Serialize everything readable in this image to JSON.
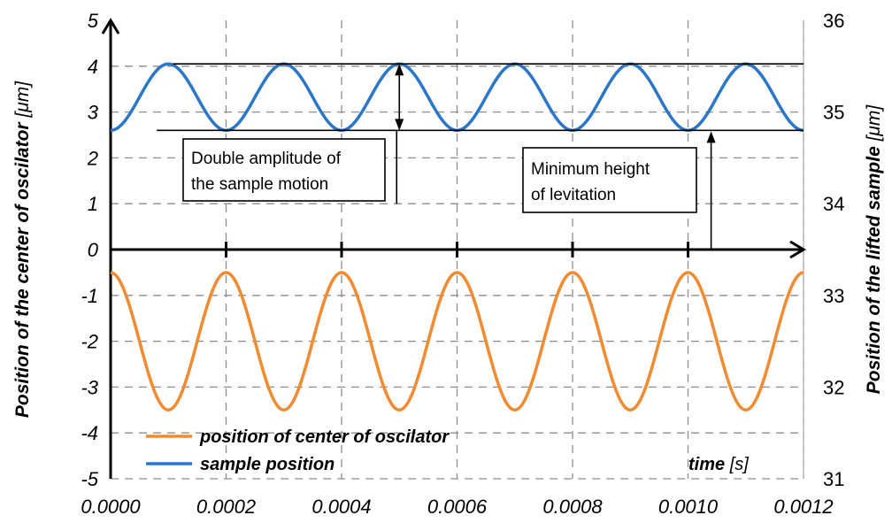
{
  "chart_data": {
    "type": "line",
    "x_ticks": [
      "0.0000",
      "0.0002",
      "0.0004",
      "0.0006",
      "0.0008",
      "0.0010",
      "0.0012"
    ],
    "xlim": [
      0,
      0.0012
    ],
    "left_axis": {
      "label_main": "Position of the center of oscilator ",
      "label_unit": "[μm]",
      "ylim": [
        -5,
        5
      ],
      "ticks": [
        "5",
        "4",
        "3",
        "2",
        "1",
        "0",
        "-1",
        "-2",
        "-3",
        "-4",
        "-5"
      ]
    },
    "right_axis": {
      "label_main": "Position of the lifted sample ",
      "label_unit": "[μm]",
      "ylim": [
        31,
        36
      ],
      "ticks": [
        "36",
        "35",
        "34",
        "33",
        "32",
        "31"
      ]
    },
    "x_label_main": "time ",
    "x_label_unit": "[s]",
    "grid": true,
    "legend_position": "bottom-left",
    "series": [
      {
        "name": "position of center of oscilator",
        "color": "#f28a30",
        "axis": "left",
        "x": [
          0,
          0.0001,
          0.0002,
          0.0003,
          0.0004,
          0.0005,
          0.0006,
          0.0007,
          0.0008,
          0.0009,
          0.001,
          0.0011,
          0.0012
        ],
        "y": [
          -0.5,
          -3.5,
          -0.5,
          -3.5,
          -0.5,
          -3.5,
          -0.5,
          -3.5,
          -0.5,
          -3.5,
          -0.5,
          -3.5,
          -0.5
        ]
      },
      {
        "name": "sample position",
        "color": "#2a76c9",
        "axis": "left",
        "x": [
          0,
          0.0001,
          0.0002,
          0.0003,
          0.0004,
          0.0005,
          0.0006,
          0.0007,
          0.0008,
          0.0009,
          0.001,
          0.0011,
          0.0012
        ],
        "y": [
          2.6,
          4.05,
          2.6,
          4.05,
          2.6,
          4.05,
          2.6,
          4.05,
          2.6,
          4.05,
          2.6,
          4.05,
          2.6
        ]
      }
    ],
    "annotations": [
      {
        "lines": [
          "Double amplitude of",
          "the sample motion"
        ]
      },
      {
        "lines": [
          "Minimum height",
          "of levitation"
        ]
      }
    ]
  }
}
